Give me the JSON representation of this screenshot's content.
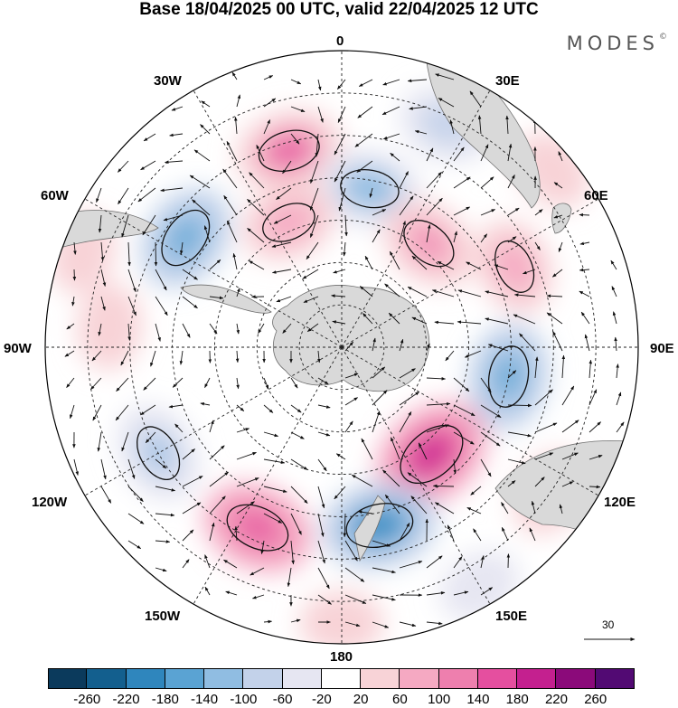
{
  "title": "Base 18/04/2025 00 UTC, valid 22/04/2025 12 UTC",
  "brand": "MODES",
  "brand_mark": "©",
  "longitude_labels": {
    "n0": "0",
    "e30": "30E",
    "e60": "60E",
    "e90": "90E",
    "e120": "120E",
    "e150": "150E",
    "s180": "180",
    "w150": "150W",
    "w120": "120W",
    "w90": "90W",
    "w60": "60W",
    "w30": "30W"
  },
  "reference_vector_label": "30",
  "colorbar": {
    "ticks": [
      "-260",
      "-220",
      "-180",
      "-140",
      "-100",
      "-60",
      "-20",
      "20",
      "60",
      "100",
      "140",
      "180",
      "220",
      "260"
    ],
    "colors": [
      "#0b3a5c",
      "#135f8e",
      "#2f86bd",
      "#5aa3d3",
      "#90bde2",
      "#c3d2ea",
      "#e6e6f2",
      "#ffffff",
      "#f8d3d7",
      "#f5a9c2",
      "#ee7fae",
      "#e54f9f",
      "#c4208f",
      "#8b0a7a",
      "#520a73"
    ]
  },
  "map_colors": {
    "land": "#d9d9d9",
    "land_edge": "#6f6f6f",
    "grid": "#222222",
    "arrow": "#111111",
    "contour": "#111111"
  },
  "anomaly_cells": [
    {
      "lon": 345,
      "lat": -42,
      "v": 150
    },
    {
      "lon": 305,
      "lat": -45,
      "v": -150
    },
    {
      "lon": 10,
      "lat": -52,
      "v": -130
    },
    {
      "lon": 337,
      "lat": -58,
      "v": 100
    },
    {
      "lon": 40,
      "lat": -58,
      "v": 120
    },
    {
      "lon": 25,
      "lat": -32,
      "v": -90
    },
    {
      "lon": 65,
      "lat": -45,
      "v": 100
    },
    {
      "lon": 100,
      "lat": -50,
      "v": -150
    },
    {
      "lon": 140,
      "lat": -57,
      "v": 220
    },
    {
      "lon": 168,
      "lat": -47,
      "v": -190
    },
    {
      "lon": 205,
      "lat": -43,
      "v": 170
    },
    {
      "lon": 240,
      "lat": -40,
      "v": -120
    },
    {
      "lon": 125,
      "lat": -30,
      "v": 60
    },
    {
      "lon": 275,
      "lat": -35,
      "v": 50
    },
    {
      "lon": 180,
      "lat": -25,
      "v": 40
    },
    {
      "lon": 290,
      "lat": -25,
      "v": 30
    },
    {
      "lon": 150,
      "lat": -25,
      "v": -40
    },
    {
      "lon": 50,
      "lat": -25,
      "v": 40
    }
  ]
}
